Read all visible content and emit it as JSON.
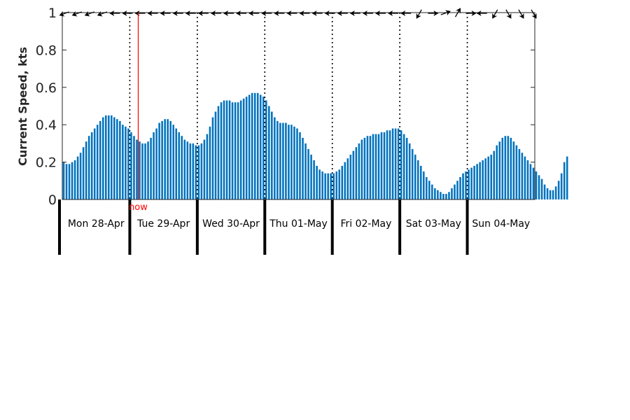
{
  "chart_data": {
    "type": "bar",
    "title": "",
    "xlabel": "",
    "ylabel": "Current Speed, kts",
    "ylim": [
      0,
      1
    ],
    "yticks": [
      {
        "value": 0,
        "label": "0"
      },
      {
        "value": 0.2,
        "label": "0.2"
      },
      {
        "value": 0.4,
        "label": "0.4"
      },
      {
        "value": 0.6,
        "label": "0.6"
      },
      {
        "value": 0.8,
        "label": "0.8"
      },
      {
        "value": 1,
        "label": "1"
      }
    ],
    "x_unit": "hours from Mon 28-Apr 00:00",
    "bars_per_day": 24,
    "days": [
      "Mon 28-Apr",
      "Tue 29-Apr",
      "Wed 30-Apr",
      "Thu 01-May",
      "Fri 02-May",
      "Sat 03-May",
      "Sun 04-May"
    ],
    "now_label": "now",
    "now_hour": 27,
    "colors": {
      "bar": "#0072BD",
      "now": "#ff0000",
      "arrow": "#000000",
      "axis": "#262626"
    },
    "values": [
      0.2,
      0.19,
      0.19,
      0.2,
      0.21,
      0.23,
      0.25,
      0.28,
      0.31,
      0.34,
      0.36,
      0.38,
      0.4,
      0.42,
      0.44,
      0.45,
      0.45,
      0.45,
      0.44,
      0.43,
      0.42,
      0.4,
      0.39,
      0.38,
      0.36,
      0.34,
      0.32,
      0.31,
      0.3,
      0.3,
      0.31,
      0.33,
      0.36,
      0.38,
      0.41,
      0.42,
      0.43,
      0.43,
      0.42,
      0.4,
      0.38,
      0.36,
      0.34,
      0.32,
      0.31,
      0.3,
      0.3,
      0.29,
      0.29,
      0.3,
      0.32,
      0.35,
      0.39,
      0.44,
      0.47,
      0.5,
      0.52,
      0.53,
      0.53,
      0.53,
      0.52,
      0.52,
      0.52,
      0.53,
      0.54,
      0.55,
      0.56,
      0.57,
      0.57,
      0.57,
      0.56,
      0.55,
      0.53,
      0.5,
      0.47,
      0.44,
      0.42,
      0.41,
      0.41,
      0.41,
      0.4,
      0.4,
      0.39,
      0.38,
      0.36,
      0.33,
      0.3,
      0.27,
      0.24,
      0.21,
      0.18,
      0.16,
      0.15,
      0.14,
      0.14,
      0.14,
      0.14,
      0.15,
      0.16,
      0.18,
      0.2,
      0.22,
      0.24,
      0.26,
      0.28,
      0.3,
      0.32,
      0.33,
      0.34,
      0.34,
      0.35,
      0.35,
      0.35,
      0.36,
      0.36,
      0.37,
      0.37,
      0.38,
      0.38,
      0.38,
      0.37,
      0.35,
      0.33,
      0.3,
      0.27,
      0.24,
      0.21,
      0.18,
      0.15,
      0.12,
      0.1,
      0.08,
      0.06,
      0.05,
      0.04,
      0.03,
      0.03,
      0.04,
      0.06,
      0.08,
      0.1,
      0.12,
      0.14,
      0.15,
      0.16,
      0.17,
      0.18,
      0.19,
      0.2,
      0.21,
      0.22,
      0.23,
      0.24,
      0.26,
      0.29,
      0.31,
      0.33,
      0.34,
      0.34,
      0.33,
      0.31,
      0.29,
      0.27,
      0.25,
      0.23,
      0.21,
      0.19,
      0.17,
      0.15,
      0.13,
      0.11,
      0.08,
      0.06,
      0.05,
      0.05,
      0.07,
      0.1,
      0.14,
      0.2,
      0.23
    ],
    "arrow_directions_deg": [
      200,
      200,
      200,
      200,
      180,
      180,
      180,
      180,
      180,
      180,
      180,
      180,
      180,
      180,
      180,
      180,
      180,
      180,
      180,
      180,
      180,
      180,
      180,
      180,
      180,
      180,
      180,
      180,
      240,
      0,
      20,
      60,
      0,
      180,
      240,
      300,
      300,
      300
    ],
    "arrow_spacing_hours": 4.5
  }
}
